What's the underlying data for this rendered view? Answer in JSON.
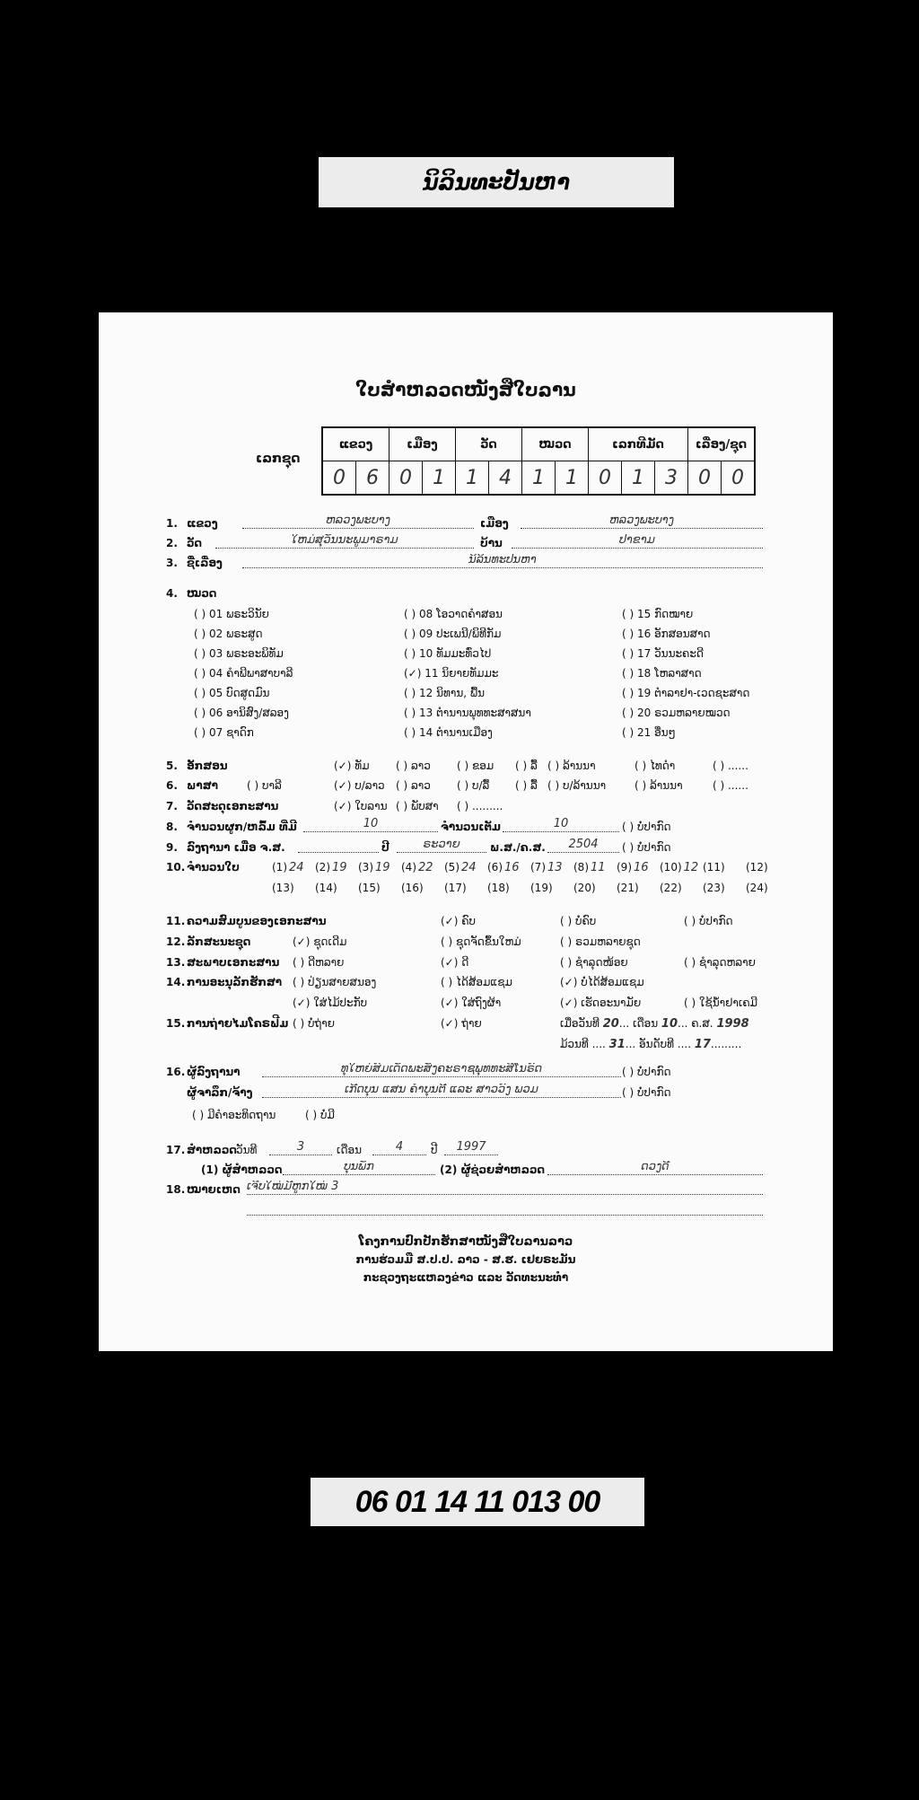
{
  "title_label": "ນິລິນທະປັນຫາ",
  "code_label": "06 01 14 11 013 00",
  "form": {
    "title": "ໃບສຳຫລວດໜັງສືໃບລານ",
    "code_caption": "ເລກຊຸດ",
    "code_headers": [
      "ແຂວງ",
      "ເມືອງ",
      "ວັດ",
      "ໝວດ",
      "ເລກທີມັດ",
      "ເລື່ອງ/ຊຸດ"
    ],
    "code_digits": [
      "0",
      "6",
      "0",
      "1",
      "1",
      "4",
      "1",
      "1",
      "0",
      "1",
      "3",
      "0",
      "0"
    ],
    "f1": {
      "num": "1.",
      "label": "ແຂວງ",
      "value": "ຫລວງພະບາງ",
      "label2": "ເມືອງ",
      "value2": "ຫລວງພະບາງ"
    },
    "f2": {
      "num": "2.",
      "label": "ວັດ",
      "value": "ໃຫມ່ສຸວັນນະພູມາຣາມ",
      "label2": "ບ້ານ",
      "value2": "ປ່າຂາມ"
    },
    "f3": {
      "num": "3.",
      "label": "ຊື່ເລື່ອງ",
      "value": "ນິລິນທະປັນຫາ"
    },
    "f4": {
      "num": "4.",
      "label": "ໝວດ",
      "categories": [
        {
          "text": "( ) 01 ພຣະວິນັຍ"
        },
        {
          "text": "( ) 02 ພຣະສູດ"
        },
        {
          "text": "( ) 03 ພຣະອະພິທັມ"
        },
        {
          "text": "( ) 04 ຄຳພີພາສາບາລີ"
        },
        {
          "text": "( ) 05 ບົດສູດມົນ"
        },
        {
          "text": "( ) 06 ອານິສົງ/ສລອງ"
        },
        {
          "text": "( ) 07 ຊາດົກ"
        },
        {
          "text": "( ) 08 ໂອວາດຄຳສອນ"
        },
        {
          "text": "( ) 09 ປະເພນີ/ພິທີກັມ"
        },
        {
          "text": "( ) 10 ທັມມະທົ່ວໄປ"
        },
        {
          "text": "(✓) 11 ນິຍາຍທັມມະ",
          "checked": true
        },
        {
          "text": "( ) 12 ນິທານ, ພື້ນ"
        },
        {
          "text": "( ) 13 ຕຳນານພຸທທະສາສນາ"
        },
        {
          "text": "( ) 14 ຕຳນານເມືອງ"
        },
        {
          "text": "( ) 15 ກົດໝາຍ"
        },
        {
          "text": "( ) 16 ອັກສອນສາດ"
        },
        {
          "text": "( ) 17 ວັນນະຄະດີ"
        },
        {
          "text": "( ) 18 ໂຫລາສາດ"
        },
        {
          "text": "( ) 19 ຕຳລາຢາ-ເວດຊະສາດ"
        },
        {
          "text": "( ) 20 ຣວມຫລາຍໝວດ"
        },
        {
          "text": "( ) 21 ອື່ນໆ"
        }
      ]
    },
    "f5": {
      "num": "5.",
      "label": "ອັກສອນ",
      "options": [
        "(✓) ທັມ",
        "( ) ລາວ",
        "( ) ຂອມ",
        "( ) ລື້",
        "( ) ລ້ານນາ",
        "( ) ໄທດຳ",
        "( ) ......"
      ]
    },
    "f6": {
      "num": "6.",
      "label": "ພາສາ",
      "options": [
        "( ) ບາລີ",
        "(✓) ບ/ລາວ",
        "( ) ລາວ",
        "( ) ບ/ລື້",
        "( ) ລື້",
        "( ) ບ/ລ້ານນາ",
        "( ) ລ້ານນາ",
        "( ) ......"
      ]
    },
    "f7": {
      "num": "7.",
      "label": "ວັດສະດຸເອກະສານ",
      "options": [
        "(✓) ໃບລານ",
        "( ) ພັບສາ",
        "( ) ........."
      ]
    },
    "f8": {
      "num": "8.",
      "label": "ຈຳນວນຜູກ/ຫລົ້ມ ທີ່ມີ",
      "value": "10",
      "label2": "ຈຳນວນເຕັມ",
      "value2": "10",
      "not_found": "( ) ບໍ່ປາກົດ"
    },
    "f9": {
      "num": "9.",
      "label": "ລົງຖານາ ເມື່ອ ຈ.ສ.",
      "value": "",
      "label2": "ປີ",
      "value2": "ຣະວາຍ",
      "label3": "ພ.ສ./ຄ.ສ.",
      "value3": "2504",
      "not_found": "( ) ບໍ່ປາກົດ"
    },
    "f10": {
      "num": "10.",
      "label": "ຈຳນວນໃບ",
      "leaves": [
        {
          "n": "(1)",
          "v": "24"
        },
        {
          "n": "(2)",
          "v": "19"
        },
        {
          "n": "(3)",
          "v": "19"
        },
        {
          "n": "(4)",
          "v": "22"
        },
        {
          "n": "(5)",
          "v": "24"
        },
        {
          "n": "(6)",
          "v": "16"
        },
        {
          "n": "(7)",
          "v": "13"
        },
        {
          "n": "(8)",
          "v": "11"
        },
        {
          "n": "(9)",
          "v": "16"
        },
        {
          "n": "(10)",
          "v": "12"
        },
        {
          "n": "(11)",
          "v": ""
        },
        {
          "n": "(12)",
          "v": ""
        },
        {
          "n": "(13)",
          "v": ""
        },
        {
          "n": "(14)",
          "v": ""
        },
        {
          "n": "(15)",
          "v": ""
        },
        {
          "n": "(16)",
          "v": ""
        },
        {
          "n": "(17)",
          "v": ""
        },
        {
          "n": "(18)",
          "v": ""
        },
        {
          "n": "(19)",
          "v": ""
        },
        {
          "n": "(20)",
          "v": ""
        },
        {
          "n": "(21)",
          "v": ""
        },
        {
          "n": "(22)",
          "v": ""
        },
        {
          "n": "(23)",
          "v": ""
        },
        {
          "n": "(24)",
          "v": ""
        }
      ]
    },
    "f11": {
      "num": "11.",
      "label": "ຄວາມສົມບູນຂອງເອກະສານ",
      "options": [
        "(✓) ຄົບ",
        "( ) ບໍ່ຄົບ",
        "( ) ບໍ່ປາກົດ"
      ]
    },
    "f12": {
      "num": "12.",
      "label": "ລັກສະນະຊຸດ",
      "options": [
        "(✓) ຊຸດເດີມ",
        "( ) ຊຸດຈັດຂຶ້ນໃຫມ່",
        "( ) ຣວມຫລາຍຊຸດ"
      ]
    },
    "f13": {
      "num": "13.",
      "label": "ສະພາບເອກະສານ",
      "options": [
        "( ) ດີຫລາຍ",
        "(✓) ດີ",
        "( ) ຊຳລຸດໜ້ອຍ",
        "( ) ຊຳລຸດຫລາຍ"
      ]
    },
    "f14": {
      "num": "14.",
      "label": "ການອະນຸລັກຮັກສາ",
      "options": [
        "( ) ປ່ຽນສາຍສນອງ",
        "( ) ໄດ້ສ້ອມແຊມ",
        "(✓) ບໍ່ໄດ້ສ້ອມແຊມ",
        "(✓) ໃສ່ໄມ້ປະກັບ",
        "(✓) ໃສ່ຖົງຜ້າ",
        "(✓) ເຮັດອະນາມັຍ",
        "( ) ໃຊ້ນ້ຳຢາເຄມີ"
      ]
    },
    "f15": {
      "num": "15.",
      "label": "ການຖ່າຍໄມໂຄຣຟີມ",
      "options": [
        "( ) ບໍ່ຖ່າຍ",
        "(✓) ຖ່າຍ"
      ],
      "date_label": "ເມື່ອວັນທີ",
      "day": "20",
      "month_label": "ເດືອນ",
      "month": "10",
      "year_label": "ຄ.ສ.",
      "year": "1998",
      "reel_label": "ມ້ວນທີ",
      "reel": "31",
      "order_label": "ອັນດັບທີ",
      "order": "17"
    },
    "f16": {
      "num": "16.",
      "label": "ຜູ້ລົງຖານາ",
      "value": "ທຸໃຫຍ່ສົມເດັດພະສັງຄະຣາຊພຸທທະສີໂນຣົດ",
      "label2": "ຜູ້ຈາລຶກ/ຈ້າງ",
      "value2": "ເກີດບຸນ ແສນ ຄຳບຸນຕີ ແລະ ສາວວົງ ພວມ",
      "not_found": "( ) ບໍ່ປາກົດ",
      "prayer": "( ) ມີຄຳອະທິດຖານ",
      "no_prayer": "( ) ບໍ່ມີ"
    },
    "f17": {
      "num": "17.",
      "label": "ສຳຫລວດ",
      "day_label": "ວັນທີ",
      "day": "3",
      "month_label": "ເດືອນ",
      "month": "4",
      "year_label": "ປີ",
      "year": "1997",
      "surveyor_label": "(1) ຜູ້ສຳຫລວດ",
      "surveyor": "ບຸນພັກ",
      "assistant_label": "(2) ຜູ້ຊ່ວຍສຳຫລວດ",
      "assistant": "ດວງດີ"
    },
    "f18": {
      "num": "18.",
      "label": "ໝາຍເຫດ",
      "value": "ເຈີບໃໝ່ມີຫູກໃໝ່ 3"
    },
    "footer": [
      "ໂຄງການປົກປັກຮັກສາໜັງສືໃບລານລາວ",
      "ການຮ່ວມມື ສ.ປ.ປ. ລາວ - ສ.ຮ. ເຢຍຣະມັນ",
      "ກະຊວງຖະແຫລງຂ່າວ ແລະ ວັດທະນະທຳ"
    ]
  }
}
